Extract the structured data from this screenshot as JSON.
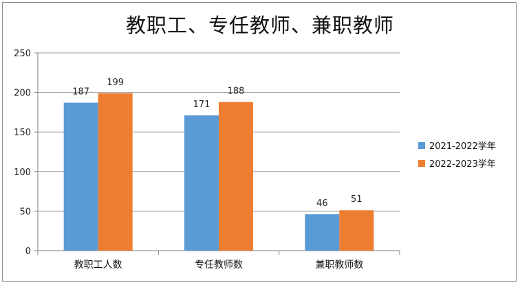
{
  "chart_data": {
    "type": "bar",
    "title": "教职工、专任教师、兼职教师",
    "categories": [
      "教职工人数",
      "专任教师数",
      "兼职教师数"
    ],
    "series": [
      {
        "name": "2021-2022学年",
        "values": [
          187,
          171,
          46
        ],
        "color": "#5b9bd5"
      },
      {
        "name": "2022-2023学年",
        "values": [
          199,
          188,
          51
        ],
        "color": "#ed7d31"
      }
    ],
    "ylim": [
      0,
      250
    ],
    "yticks": [
      0,
      50,
      100,
      150,
      200,
      250
    ],
    "grid": true,
    "legend": "right",
    "data_labels": true
  }
}
